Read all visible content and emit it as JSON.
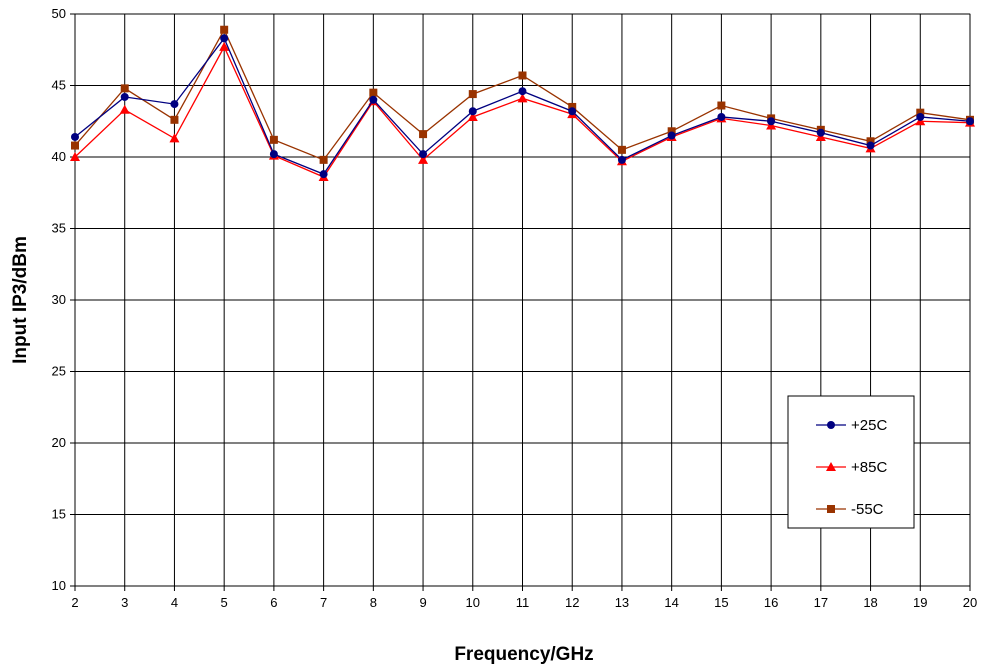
{
  "chart_data": {
    "type": "line",
    "title": "",
    "xlabel": "Frequency/GHz",
    "ylabel": "Input IP3/dBm",
    "xlim": [
      2,
      20
    ],
    "ylim": [
      10,
      50
    ],
    "x_ticks": [
      2,
      3,
      4,
      5,
      6,
      7,
      8,
      9,
      10,
      11,
      12,
      13,
      14,
      15,
      16,
      17,
      18,
      19,
      20
    ],
    "y_ticks": [
      10,
      15,
      20,
      25,
      30,
      35,
      40,
      45,
      50
    ],
    "grid": true,
    "legend_position": "bottom-right",
    "x": [
      2,
      3,
      4,
      5,
      6,
      7,
      8,
      9,
      10,
      11,
      12,
      13,
      14,
      15,
      16,
      17,
      18,
      19,
      20
    ],
    "series": [
      {
        "name": "+25C",
        "color": "#000080",
        "marker": "circle",
        "values": [
          41.4,
          44.2,
          43.7,
          48.3,
          40.2,
          38.8,
          44.0,
          40.2,
          43.2,
          44.6,
          43.2,
          39.8,
          41.5,
          42.8,
          42.5,
          41.7,
          40.8,
          42.8,
          42.5
        ]
      },
      {
        "name": "+85C",
        "color": "#ff0000",
        "marker": "triangle",
        "values": [
          40.0,
          43.3,
          41.3,
          47.7,
          40.1,
          38.6,
          43.9,
          39.8,
          42.8,
          44.1,
          43.0,
          39.7,
          41.4,
          42.7,
          42.2,
          41.4,
          40.6,
          42.5,
          42.4
        ]
      },
      {
        "name": "-55C",
        "color": "#993300",
        "marker": "square",
        "values": [
          40.8,
          44.8,
          42.6,
          48.9,
          41.2,
          39.8,
          44.5,
          41.6,
          44.4,
          45.7,
          43.5,
          40.5,
          41.8,
          43.6,
          42.7,
          41.9,
          41.1,
          43.1,
          42.6
        ]
      }
    ]
  }
}
